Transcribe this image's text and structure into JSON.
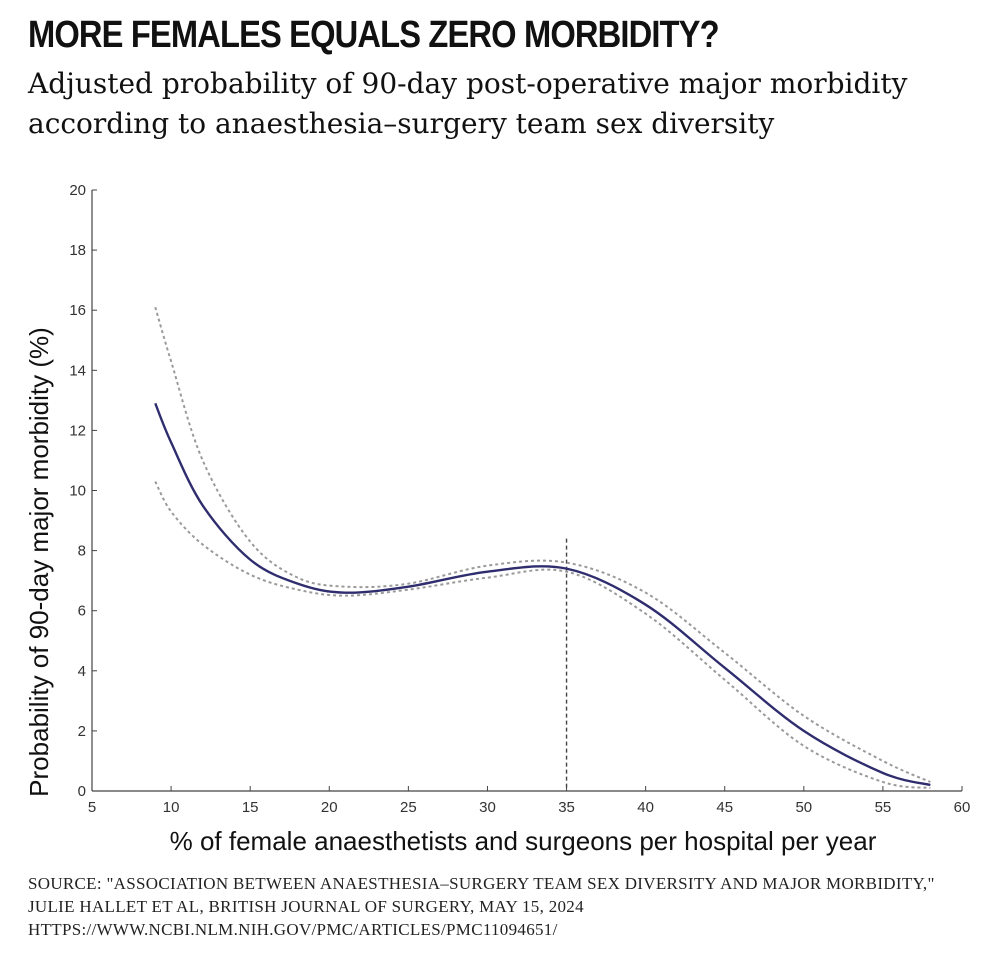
{
  "header": {
    "title": "MORE FEMALES EQUALS ZERO MORBIDITY?",
    "subtitle": "Adjusted probability of 90-day post-operative major morbidity according to anaesthesia–surgery team sex diversity"
  },
  "source": "SOURCE:  \"ASSOCIATION BETWEEN ANAESTHESIA–SURGERY TEAM SEX DIVERSITY AND MAJOR MORBIDITY,\"  JULIE HALLET ET AL, BRITISH JOURNAL OF SURGERY, MAY 15, 2024 HTTPS://WWW.NCBI.NLM.NIH.GOV/PMC/ARTICLES/PMC11094651/",
  "chart_data": {
    "type": "line",
    "xlabel": "% of female anaesthetists and surgeons per hospital per year",
    "ylabel": "Probability of 90-day major morbidity (%)",
    "xlim": [
      5,
      60
    ],
    "ylim": [
      0,
      20
    ],
    "x_ticks": [
      "5",
      "10",
      "15",
      "20",
      "25",
      "30",
      "35",
      "40",
      "45",
      "50",
      "55",
      "60"
    ],
    "y_ticks": [
      "0",
      "2",
      "4",
      "6",
      "8",
      "10",
      "12",
      "14",
      "16",
      "18",
      "20"
    ],
    "grid": false,
    "reference_line": {
      "x": 35,
      "style": "dashed"
    },
    "series": [
      {
        "role": "estimate",
        "color": "#2f2d6e",
        "style": "solid",
        "x": [
          9,
          10,
          12,
          15,
          18,
          21,
          25,
          30,
          35,
          40,
          45,
          50,
          55,
          58
        ],
        "values": [
          12.9,
          11.6,
          9.5,
          7.7,
          6.9,
          6.6,
          6.8,
          7.3,
          7.4,
          6.2,
          4.1,
          2.0,
          0.6,
          0.2
        ]
      },
      {
        "role": "upper-ci",
        "color": "#9a9a9a",
        "style": "dotted",
        "x": [
          9,
          10,
          12,
          15,
          18,
          21,
          25,
          30,
          35,
          40,
          45,
          50,
          55,
          58
        ],
        "values": [
          16.1,
          14.3,
          11.0,
          8.3,
          7.1,
          6.8,
          6.9,
          7.5,
          7.6,
          6.6,
          4.6,
          2.5,
          1.0,
          0.3
        ]
      },
      {
        "role": "lower-ci",
        "color": "#9a9a9a",
        "style": "dotted",
        "x": [
          9,
          10,
          12,
          15,
          18,
          21,
          25,
          30,
          35,
          40,
          45,
          50,
          55,
          58
        ],
        "values": [
          10.3,
          9.3,
          8.2,
          7.2,
          6.7,
          6.5,
          6.7,
          7.1,
          7.3,
          5.9,
          3.7,
          1.5,
          0.3,
          0.1
        ]
      }
    ]
  }
}
